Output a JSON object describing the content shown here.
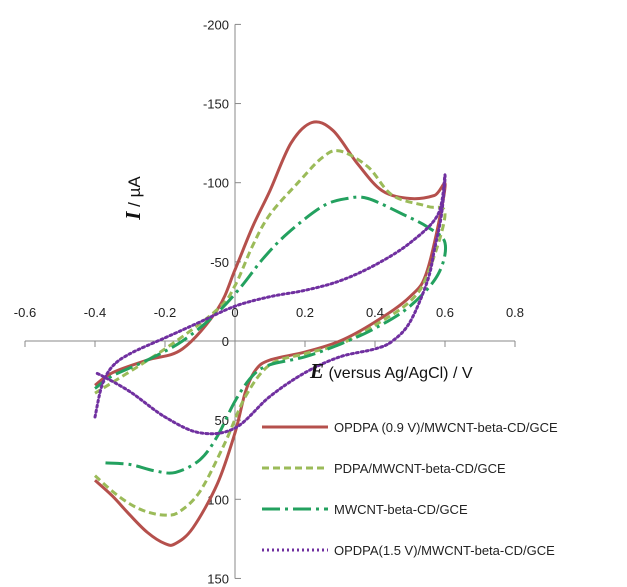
{
  "chart_data": {
    "type": "line",
    "xlabel_symbol": "E",
    "xlabel_rest": " (versus Ag/AgCl) / V",
    "ylabel_symbol": "I",
    "ylabel_rest": " / µA",
    "xlim": [
      -0.6,
      0.8
    ],
    "ylim": [
      150,
      -200
    ],
    "x_ticks": [
      -0.6,
      -0.4,
      -0.2,
      0,
      0.2,
      0.4,
      0.6,
      0.8
    ],
    "x_tick_labels": [
      "-0.6",
      "-0.4",
      "-0.2",
      "0",
      "0.2",
      "0.4",
      "0.6",
      "0.8"
    ],
    "y_ticks": [
      -200,
      -150,
      -100,
      -50,
      0,
      50,
      100,
      150
    ],
    "y_tick_labels": [
      "-200",
      "-150",
      "-100",
      "-50",
      "0",
      "50",
      "100",
      "150"
    ],
    "grid": false,
    "legend_position": "bottom-right",
    "series": [
      {
        "name": "OPDPA (0.9 V)/MWCNT-beta-CD/GCE",
        "color": "#b5504c",
        "dash": "solid",
        "points": [
          [
            -0.4,
            88
          ],
          [
            -0.35,
            98
          ],
          [
            -0.3,
            110
          ],
          [
            -0.25,
            121
          ],
          [
            -0.2,
            128
          ],
          [
            -0.17,
            128
          ],
          [
            -0.12,
            118
          ],
          [
            -0.05,
            90
          ],
          [
            0,
            58
          ],
          [
            0.03,
            32
          ],
          [
            0.06,
            18
          ],
          [
            0.1,
            12
          ],
          [
            0.2,
            7
          ],
          [
            0.3,
            0
          ],
          [
            0.4,
            -12
          ],
          [
            0.5,
            -28
          ],
          [
            0.55,
            -45
          ],
          [
            0.6,
            -97
          ],
          [
            0.57,
            -92
          ],
          [
            0.5,
            -90
          ],
          [
            0.42,
            -95
          ],
          [
            0.35,
            -112
          ],
          [
            0.28,
            -133
          ],
          [
            0.22,
            -138
          ],
          [
            0.16,
            -125
          ],
          [
            0.1,
            -95
          ],
          [
            0.05,
            -72
          ],
          [
            0,
            -45
          ],
          [
            -0.05,
            -20
          ],
          [
            -0.15,
            5
          ],
          [
            -0.25,
            12
          ],
          [
            -0.35,
            20
          ],
          [
            -0.4,
            28
          ]
        ]
      },
      {
        "name": "PDPA/MWCNT-beta-CD/GCE",
        "color": "#9bbb59",
        "dash": "7,4",
        "points": [
          [
            -0.4,
            85
          ],
          [
            -0.35,
            95
          ],
          [
            -0.3,
            103
          ],
          [
            -0.25,
            108
          ],
          [
            -0.2,
            110
          ],
          [
            -0.16,
            108
          ],
          [
            -0.1,
            95
          ],
          [
            -0.03,
            65
          ],
          [
            0.03,
            35
          ],
          [
            0.1,
            15
          ],
          [
            0.2,
            8
          ],
          [
            0.3,
            2
          ],
          [
            0.4,
            -10
          ],
          [
            0.5,
            -25
          ],
          [
            0.55,
            -42
          ],
          [
            0.6,
            -80
          ],
          [
            0.55,
            -85
          ],
          [
            0.45,
            -92
          ],
          [
            0.38,
            -110
          ],
          [
            0.3,
            -120
          ],
          [
            0.25,
            -116
          ],
          [
            0.18,
            -100
          ],
          [
            0.1,
            -80
          ],
          [
            0.05,
            -60
          ],
          [
            0,
            -35
          ],
          [
            -0.05,
            -20
          ],
          [
            -0.2,
            5
          ],
          [
            -0.4,
            33
          ]
        ]
      },
      {
        "name": "MWCNT-beta-CD/GCE",
        "color": "#23a15f",
        "dash": "18,5,3,5",
        "points": [
          [
            -0.37,
            77
          ],
          [
            -0.3,
            78
          ],
          [
            -0.23,
            82
          ],
          [
            -0.17,
            83
          ],
          [
            -0.1,
            75
          ],
          [
            -0.05,
            60
          ],
          [
            0,
            38
          ],
          [
            0.05,
            22
          ],
          [
            0.1,
            15
          ],
          [
            0.2,
            10
          ],
          [
            0.3,
            2
          ],
          [
            0.4,
            -8
          ],
          [
            0.5,
            -22
          ],
          [
            0.58,
            -42
          ],
          [
            0.6,
            -62
          ],
          [
            0.55,
            -72
          ],
          [
            0.48,
            -80
          ],
          [
            0.38,
            -90
          ],
          [
            0.32,
            -90
          ],
          [
            0.25,
            -85
          ],
          [
            0.15,
            -68
          ],
          [
            0.08,
            -52
          ],
          [
            0.02,
            -35
          ],
          [
            -0.05,
            -18
          ],
          [
            -0.15,
            0
          ],
          [
            -0.25,
            12
          ],
          [
            -0.35,
            22
          ],
          [
            -0.4,
            30
          ]
        ]
      },
      {
        "name": "OPDPA(1.5 V)/MWCNT-beta-CD/GCE",
        "color": "#7030a0",
        "dash": "2,3",
        "points": [
          [
            -0.4,
            48
          ],
          [
            -0.38,
            28
          ],
          [
            -0.35,
            16
          ],
          [
            -0.3,
            8
          ],
          [
            -0.2,
            -2
          ],
          [
            -0.1,
            -12
          ],
          [
            0,
            -22
          ],
          [
            0.1,
            -28
          ],
          [
            0.2,
            -32
          ],
          [
            0.3,
            -38
          ],
          [
            0.4,
            -48
          ],
          [
            0.5,
            -62
          ],
          [
            0.58,
            -80
          ],
          [
            0.6,
            -105
          ],
          [
            0.59,
            -80
          ],
          [
            0.57,
            -58
          ],
          [
            0.55,
            -38
          ],
          [
            0.5,
            -12
          ],
          [
            0.45,
            0
          ],
          [
            0.4,
            5
          ],
          [
            0.3,
            10
          ],
          [
            0.2,
            20
          ],
          [
            0.1,
            35
          ],
          [
            0,
            55
          ],
          [
            -0.1,
            58
          ],
          [
            -0.2,
            48
          ],
          [
            -0.3,
            32
          ],
          [
            -0.38,
            22
          ],
          [
            -0.4,
            20
          ]
        ]
      }
    ]
  }
}
